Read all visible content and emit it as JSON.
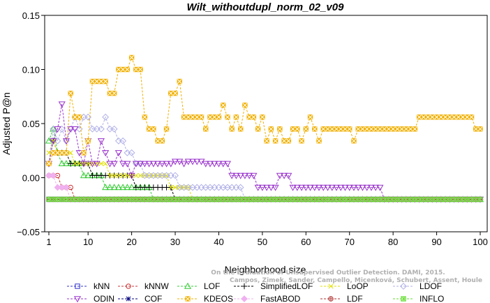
{
  "chart_data": {
    "type": "line",
    "title": "Wilt_withoutdupl_norm_02_v09",
    "xlabel": "Neighborhood size",
    "ylabel": "Adjusted P@n",
    "xlim": [
      1,
      100
    ],
    "ylim": [
      -0.05,
      0.15
    ],
    "xticks": [
      "1",
      "10",
      "20",
      "30",
      "40",
      "50",
      "60",
      "70",
      "80",
      "90",
      "100"
    ],
    "yticks": [
      "0.15",
      "0.10",
      "0.05",
      "0.00",
      "−0.05"
    ],
    "grid": false,
    "legend_position": "bottom",
    "credit": "Campos, Zimek, Sander, Campello, Micenková, Schubert, Assent, Houle\nOn the Evaluation of Unsupervised Outlier Detection. DAMI, 2015.",
    "series": [
      {
        "name": "kNN",
        "color": "#3333cc",
        "marker": "square",
        "points": [
          [
            1,
            -0.02
          ],
          [
            100,
            -0.02
          ]
        ]
      },
      {
        "name": "kNNW",
        "color": "#cc3333",
        "marker": "circle",
        "points": [
          [
            1,
            0.002
          ],
          [
            2,
            0.002
          ],
          [
            3,
            0.002
          ],
          [
            4,
            -0.009
          ],
          [
            6,
            -0.009
          ],
          [
            7,
            -0.02
          ],
          [
            100,
            -0.02
          ]
        ]
      },
      {
        "name": "LOF",
        "color": "#33cc33",
        "marker": "triangle",
        "points": [
          [
            1,
            0.034
          ],
          [
            2,
            0.045
          ],
          [
            3,
            0.023
          ],
          [
            4,
            0.013
          ],
          [
            6,
            0.013
          ],
          [
            8,
            0.013
          ],
          [
            9,
            0.002
          ],
          [
            10,
            0.002
          ],
          [
            13,
            0.002
          ],
          [
            14,
            -0.009
          ],
          [
            24,
            -0.009
          ],
          [
            25,
            -0.02
          ],
          [
            100,
            -0.02
          ]
        ]
      },
      {
        "name": "SimplifiedLOF",
        "color": "#000000",
        "marker": "plus",
        "points": [
          [
            1,
            0.013
          ],
          [
            2,
            0.034
          ],
          [
            3,
            0.023
          ],
          [
            5,
            0.023
          ],
          [
            6,
            0.013
          ],
          [
            9,
            0.013
          ],
          [
            10,
            0.013
          ],
          [
            11,
            0.002
          ],
          [
            20,
            0.002
          ],
          [
            21,
            -0.009
          ],
          [
            29,
            -0.009
          ],
          [
            30,
            -0.02
          ],
          [
            100,
            -0.02
          ]
        ]
      },
      {
        "name": "LoOP",
        "color": "#e0e000",
        "marker": "x",
        "points": [
          [
            1,
            0.023
          ],
          [
            2,
            0.034
          ],
          [
            3,
            0.023
          ],
          [
            6,
            0.023
          ],
          [
            7,
            0.013
          ],
          [
            14,
            0.013
          ],
          [
            15,
            0.002
          ],
          [
            24,
            0.002
          ],
          [
            25,
            0.002
          ],
          [
            28,
            0.002
          ],
          [
            29,
            -0.009
          ],
          [
            33,
            -0.009
          ],
          [
            34,
            -0.02
          ],
          [
            100,
            -0.02
          ]
        ]
      },
      {
        "name": "LDOF",
        "color": "#b0b0e8",
        "marker": "diamond",
        "points": [
          [
            1,
            0.013
          ],
          [
            2,
            0.045
          ],
          [
            3,
            0.034
          ],
          [
            4,
            0.045
          ],
          [
            5,
            0.034
          ],
          [
            6,
            0.045
          ],
          [
            7,
            0.056
          ],
          [
            8,
            0.045
          ],
          [
            9,
            0.056
          ],
          [
            10,
            0.056
          ],
          [
            11,
            0.045
          ],
          [
            12,
            0.045
          ],
          [
            13,
            0.045
          ],
          [
            14,
            0.056
          ],
          [
            15,
            0.045
          ],
          [
            16,
            0.045
          ],
          [
            17,
            0.034
          ],
          [
            18,
            0.034
          ],
          [
            19,
            0.023
          ],
          [
            20,
            0.023
          ],
          [
            21,
            0.013
          ],
          [
            22,
            0.013
          ],
          [
            23,
            0.002
          ],
          [
            30,
            0.002
          ],
          [
            31,
            -0.009
          ],
          [
            45,
            -0.009
          ],
          [
            46,
            -0.02
          ],
          [
            100,
            -0.02
          ]
        ]
      },
      {
        "name": "ODIN",
        "color": "#9933cc",
        "marker": "triangle-down",
        "points": [
          [
            1,
            0.013
          ],
          [
            2,
            0.034
          ],
          [
            3,
            0.045
          ],
          [
            4,
            0.068
          ],
          [
            5,
            0.034
          ],
          [
            6,
            0.045
          ],
          [
            7,
            0.045
          ],
          [
            8,
            0.023
          ],
          [
            9,
            0.013
          ],
          [
            10,
            0.034
          ],
          [
            11,
            0.013
          ],
          [
            12,
            0.013
          ],
          [
            13,
            0.034
          ],
          [
            14,
            0.023
          ],
          [
            15,
            0.013
          ],
          [
            16,
            0.013
          ],
          [
            17,
            0.023
          ],
          [
            18,
            0.013
          ],
          [
            19,
            0.013
          ],
          [
            20,
            0.002
          ],
          [
            21,
            0.013
          ],
          [
            22,
            0.013
          ],
          [
            23,
            0.013
          ],
          [
            24,
            0.013
          ],
          [
            25,
            0.013
          ],
          [
            26,
            0.013
          ],
          [
            27,
            0.013
          ],
          [
            28,
            0.013
          ],
          [
            29,
            0.013
          ],
          [
            30,
            0.015
          ],
          [
            31,
            0.015
          ],
          [
            32,
            0.013
          ],
          [
            33,
            0.015
          ],
          [
            34,
            0.015
          ],
          [
            35,
            0.015
          ],
          [
            36,
            0.015
          ],
          [
            37,
            0.013
          ],
          [
            38,
            0.013
          ],
          [
            39,
            0.013
          ],
          [
            40,
            0.013
          ],
          [
            41,
            0.013
          ],
          [
            42,
            0.013
          ],
          [
            43,
            0.002
          ],
          [
            44,
            0.002
          ],
          [
            45,
            0.002
          ],
          [
            46,
            0.002
          ],
          [
            47,
            0.002
          ],
          [
            48,
            0.002
          ],
          [
            49,
            -0.009
          ],
          [
            50,
            -0.009
          ],
          [
            51,
            -0.009
          ],
          [
            52,
            -0.009
          ],
          [
            53,
            -0.009
          ],
          [
            54,
            0.002
          ],
          [
            55,
            0.002
          ],
          [
            56,
            0.002
          ],
          [
            57,
            -0.009
          ],
          [
            58,
            -0.009
          ],
          [
            59,
            -0.009
          ],
          [
            60,
            -0.009
          ],
          [
            61,
            -0.009
          ],
          [
            62,
            -0.009
          ],
          [
            63,
            -0.009
          ],
          [
            64,
            -0.009
          ],
          [
            65,
            -0.009
          ],
          [
            66,
            -0.009
          ],
          [
            67,
            -0.009
          ],
          [
            68,
            -0.009
          ],
          [
            69,
            -0.009
          ],
          [
            70,
            -0.009
          ],
          [
            71,
            -0.009
          ],
          [
            72,
            -0.009
          ],
          [
            73,
            -0.009
          ],
          [
            74,
            -0.009
          ],
          [
            75,
            -0.009
          ],
          [
            76,
            -0.009
          ],
          [
            77,
            -0.009
          ],
          [
            78,
            -0.02
          ],
          [
            100,
            -0.02
          ]
        ]
      },
      {
        "name": "COF",
        "color": "#000080",
        "marker": "asterisk",
        "points": [
          [
            1,
            -0.02
          ],
          [
            100,
            -0.02
          ]
        ]
      },
      {
        "name": "KDEOS",
        "color": "#f0b000",
        "marker": "square-x",
        "points": [
          [
            1,
            0.013
          ],
          [
            2,
            0.023
          ],
          [
            3,
            0.023
          ],
          [
            4,
            0.023
          ],
          [
            5,
            0.023
          ],
          [
            6,
            0.078
          ],
          [
            7,
            0.056
          ],
          [
            8,
            0.056
          ],
          [
            9,
            0.023
          ],
          [
            10,
            0.034
          ],
          [
            11,
            0.089
          ],
          [
            12,
            0.089
          ],
          [
            13,
            0.089
          ],
          [
            14,
            0.089
          ],
          [
            15,
            0.078
          ],
          [
            16,
            0.078
          ],
          [
            17,
            0.1
          ],
          [
            18,
            0.1
          ],
          [
            19,
            0.1
          ],
          [
            20,
            0.111
          ],
          [
            21,
            0.1
          ],
          [
            22,
            0.1
          ],
          [
            23,
            0.056
          ],
          [
            24,
            0.045
          ],
          [
            25,
            0.045
          ],
          [
            26,
            0.034
          ],
          [
            27,
            0.034
          ],
          [
            28,
            0.045
          ],
          [
            29,
            0.078
          ],
          [
            30,
            0.078
          ],
          [
            31,
            0.089
          ],
          [
            32,
            0.056
          ],
          [
            33,
            0.056
          ],
          [
            34,
            0.056
          ],
          [
            35,
            0.056
          ],
          [
            36,
            0.056
          ],
          [
            37,
            0.045
          ],
          [
            38,
            0.056
          ],
          [
            39,
            0.056
          ],
          [
            40,
            0.056
          ],
          [
            41,
            0.067
          ],
          [
            42,
            0.056
          ],
          [
            43,
            0.045
          ],
          [
            44,
            0.056
          ],
          [
            45,
            0.045
          ],
          [
            46,
            0.067
          ],
          [
            47,
            0.056
          ],
          [
            48,
            0.056
          ],
          [
            49,
            0.045
          ],
          [
            50,
            0.056
          ],
          [
            51,
            0.034
          ],
          [
            52,
            0.045
          ],
          [
            53,
            0.034
          ],
          [
            54,
            0.045
          ],
          [
            55,
            0.034
          ],
          [
            56,
            0.034
          ],
          [
            57,
            0.045
          ],
          [
            58,
            0.045
          ],
          [
            59,
            0.034
          ],
          [
            60,
            0.045
          ],
          [
            61,
            0.056
          ],
          [
            62,
            0.045
          ],
          [
            63,
            0.034
          ],
          [
            64,
            0.045
          ],
          [
            65,
            0.045
          ],
          [
            66,
            0.045
          ],
          [
            67,
            0.045
          ],
          [
            68,
            0.045
          ],
          [
            69,
            0.045
          ],
          [
            70,
            0.045
          ],
          [
            71,
            0.034
          ],
          [
            72,
            0.045
          ],
          [
            73,
            0.045
          ],
          [
            74,
            0.045
          ],
          [
            75,
            0.045
          ],
          [
            76,
            0.045
          ],
          [
            77,
            0.045
          ],
          [
            78,
            0.045
          ],
          [
            79,
            0.045
          ],
          [
            80,
            0.045
          ],
          [
            81,
            0.045
          ],
          [
            82,
            0.045
          ],
          [
            83,
            0.045
          ],
          [
            84,
            0.045
          ],
          [
            85,
            0.045
          ],
          [
            86,
            0.056
          ],
          [
            87,
            0.056
          ],
          [
            88,
            0.056
          ],
          [
            89,
            0.056
          ],
          [
            90,
            0.056
          ],
          [
            91,
            0.056
          ],
          [
            92,
            0.056
          ],
          [
            93,
            0.056
          ],
          [
            94,
            0.056
          ],
          [
            95,
            0.056
          ],
          [
            96,
            0.056
          ],
          [
            97,
            0.056
          ],
          [
            98,
            0.056
          ],
          [
            99,
            0.045
          ],
          [
            100,
            0.045
          ]
        ]
      },
      {
        "name": "FastABOD",
        "color": "#f0b0f0",
        "marker": "diamond-filled",
        "points": [
          [
            1,
            0.002
          ],
          [
            2,
            0.002
          ],
          [
            3,
            -0.009
          ],
          [
            5,
            -0.009
          ],
          [
            6,
            -0.02
          ],
          [
            100,
            -0.02
          ]
        ]
      },
      {
        "name": "LDF",
        "color": "#b03030",
        "marker": "circle-plus",
        "points": [
          [
            1,
            -0.02
          ],
          [
            100,
            -0.02
          ]
        ]
      },
      {
        "name": "INFLO",
        "color": "#66dd33",
        "marker": "square-star",
        "points": [
          [
            1,
            -0.02
          ],
          [
            100,
            -0.02
          ]
        ]
      }
    ]
  }
}
